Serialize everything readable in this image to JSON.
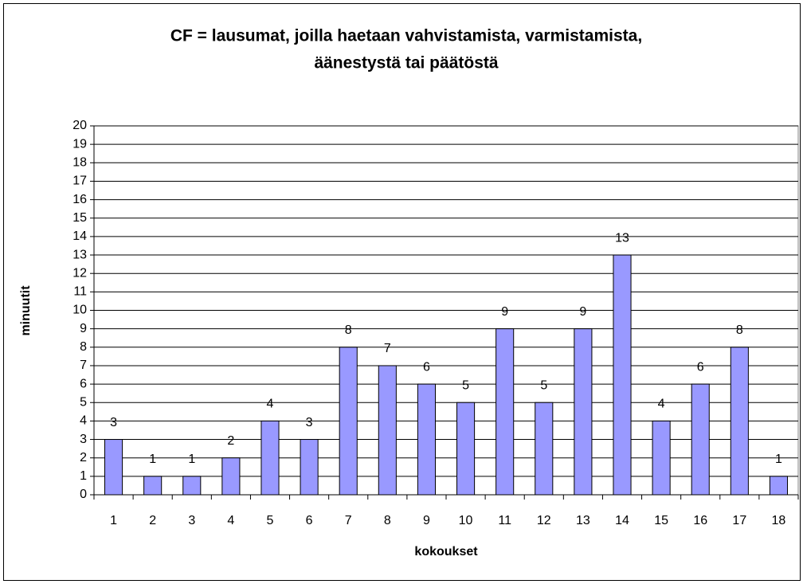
{
  "chart_data": {
    "type": "bar",
    "title": [
      "CF = lausumat, joilla haetaan vahvistamista, varmistamista,",
      "äänestystä tai päätöstä"
    ],
    "x_label": "kokoukset",
    "y_label": "minuutit",
    "categories": [
      "1",
      "2",
      "3",
      "4",
      "5",
      "6",
      "7",
      "8",
      "9",
      "10",
      "11",
      "12",
      "13",
      "14",
      "15",
      "16",
      "17",
      "18"
    ],
    "values": [
      3,
      1,
      1,
      2,
      4,
      3,
      8,
      7,
      6,
      5,
      9,
      5,
      9,
      13,
      4,
      6,
      8,
      1
    ],
    "color": "#9999ff",
    "ylim": [
      0,
      20
    ],
    "yticks": [
      0,
      1,
      2,
      3,
      4,
      5,
      6,
      7,
      8,
      9,
      10,
      11,
      12,
      13,
      14,
      15,
      16,
      17,
      18,
      19,
      20
    ],
    "grid": true
  }
}
